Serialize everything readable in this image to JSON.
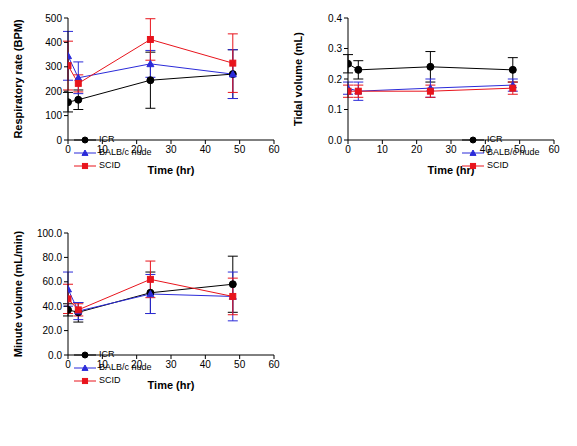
{
  "chart_data": [
    {
      "type": "line",
      "x_label": "Time (hr)",
      "y_label": "Respiratory rate (BPM)",
      "x": [
        0,
        3,
        24,
        48
      ],
      "xlim": [
        0,
        60
      ],
      "xticks": [
        0,
        10,
        20,
        30,
        40,
        50,
        60
      ],
      "ylim": [
        0,
        500
      ],
      "yticks": [
        0,
        100,
        200,
        300,
        400,
        500
      ],
      "legend": "lower left",
      "series": [
        {
          "name": "ICR",
          "color": "#000000",
          "marker": "circle",
          "values": [
            155,
            165,
            245,
            270
          ],
          "errors": [
            40,
            40,
            115,
            100
          ]
        },
        {
          "name": "BALB/c nude",
          "color": "#2b2bd9",
          "marker": "triangle",
          "values": [
            345,
            255,
            312,
            270
          ],
          "errors": [
            100,
            65,
            55,
            100
          ]
        },
        {
          "name": "SCID",
          "color": "#e8141c",
          "marker": "square",
          "values": [
            305,
            232,
            412,
            315
          ],
          "errors": [
            100,
            35,
            85,
            120
          ]
        }
      ]
    },
    {
      "type": "line",
      "x_label": "Time (hr)",
      "y_label": "Tidal volume (mL)",
      "x": [
        0,
        3,
        24,
        48
      ],
      "xlim": [
        0,
        60
      ],
      "xticks": [
        0,
        10,
        20,
        30,
        40,
        50,
        60
      ],
      "ylim": [
        0,
        0.4
      ],
      "yticks": [
        {
          "value": 0,
          "label": "0.0"
        },
        0.1,
        0.2,
        0.3,
        0.4
      ],
      "legend": "lower right",
      "series": [
        {
          "name": "ICR",
          "color": "#000000",
          "marker": "circle",
          "values": [
            0.25,
            0.23,
            0.24,
            0.23
          ],
          "errors": [
            0.03,
            0.03,
            0.05,
            0.04
          ]
        },
        {
          "name": "BALB/c nude",
          "color": "#2b2bd9",
          "marker": "triangle",
          "values": [
            0.17,
            0.16,
            0.17,
            0.18
          ],
          "errors": [
            0.02,
            0.03,
            0.03,
            0.02
          ]
        },
        {
          "name": "SCID",
          "color": "#e8141c",
          "marker": "square",
          "values": [
            0.16,
            0.16,
            0.16,
            0.17
          ],
          "errors": [
            0.02,
            0.02,
            0.02,
            0.02
          ]
        }
      ]
    },
    {
      "type": "line",
      "x_label": "Time (hr)",
      "y_label": "Minute volume (mL/min)",
      "x": [
        0,
        3,
        24,
        48
      ],
      "xlim": [
        0,
        60
      ],
      "xticks": [
        0,
        10,
        20,
        30,
        40,
        50,
        60
      ],
      "ylim": [
        0,
        100
      ],
      "yticks": [
        {
          "value": 0,
          "label": "0.0"
        },
        {
          "value": 20,
          "label": "20.0"
        },
        {
          "value": 40,
          "label": "40.0"
        },
        {
          "value": 60,
          "label": "60.0"
        },
        {
          "value": 80,
          "label": "80.0"
        },
        {
          "value": 100,
          "label": "100.0"
        }
      ],
      "legend": "lower left",
      "series": [
        {
          "name": "ICR",
          "color": "#000000",
          "marker": "circle",
          "values": [
            37,
            35,
            51,
            58
          ],
          "errors": [
            5,
            8,
            17,
            23
          ]
        },
        {
          "name": "BALB/c nude",
          "color": "#2b2bd9",
          "marker": "triangle",
          "values": [
            54,
            36,
            50,
            48
          ],
          "errors": [
            14,
            7,
            16,
            20
          ]
        },
        {
          "name": "SCID",
          "color": "#e8141c",
          "marker": "square",
          "values": [
            46,
            37,
            62,
            48
          ],
          "errors": [
            12,
            5,
            15,
            15
          ]
        }
      ]
    }
  ]
}
